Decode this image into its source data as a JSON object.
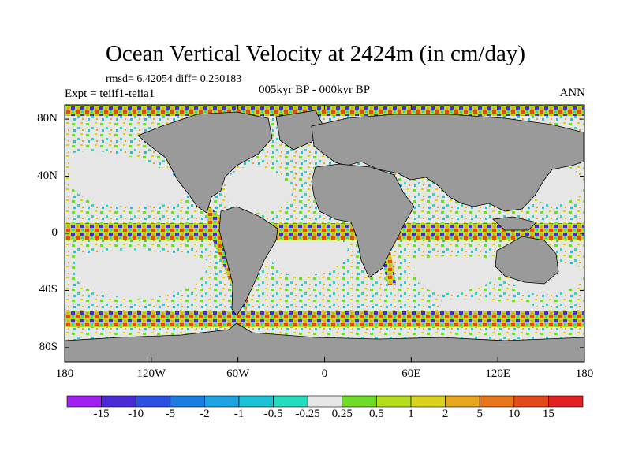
{
  "title": "Ocean Vertical Velocity at 2424m (in cm/day)",
  "stats": "rmsd= 6.42054 diff= 0.230183",
  "experiment": "Expt = teiif1-teiia1",
  "period": "005kyr BP - 000kyr BP",
  "season": "ANN",
  "chart_data": {
    "type": "heatmap",
    "projection": "cylindrical equidistant",
    "lon_range": [
      -180,
      180
    ],
    "lat_range": [
      -90,
      90
    ],
    "x_ticks": [
      {
        "lon": -180,
        "label": "180"
      },
      {
        "lon": -120,
        "label": "120W"
      },
      {
        "lon": -60,
        "label": "60W"
      },
      {
        "lon": 0,
        "label": "0"
      },
      {
        "lon": 60,
        "label": "60E"
      },
      {
        "lon": 120,
        "label": "120E"
      },
      {
        "lon": 180,
        "label": "180"
      }
    ],
    "y_ticks": [
      {
        "lat": 80,
        "label": "80N"
      },
      {
        "lat": 40,
        "label": "40N"
      },
      {
        "lat": 0,
        "label": "0"
      },
      {
        "lat": -40,
        "label": "40S"
      },
      {
        "lat": -80,
        "label": "80S"
      }
    ],
    "colorbar": {
      "labels": [
        "-15",
        "-10",
        "-5",
        "-2",
        "-1",
        "-0.5",
        "-0.25",
        "0.25",
        "0.5",
        "1",
        "2",
        "5",
        "10",
        "15"
      ],
      "colors": [
        "#a020f0",
        "#4b2bd6",
        "#2b4fe0",
        "#1a7ee0",
        "#1fa3e0",
        "#1ec2d6",
        "#24dcc0",
        "#e6e6e6",
        "#6fdc2a",
        "#b6dc1e",
        "#d8d21c",
        "#e8a51e",
        "#e8761c",
        "#e34a1a",
        "#e02222"
      ]
    },
    "land_color": "#9a9a9a",
    "near_zero_color": "#e6e6e6"
  }
}
